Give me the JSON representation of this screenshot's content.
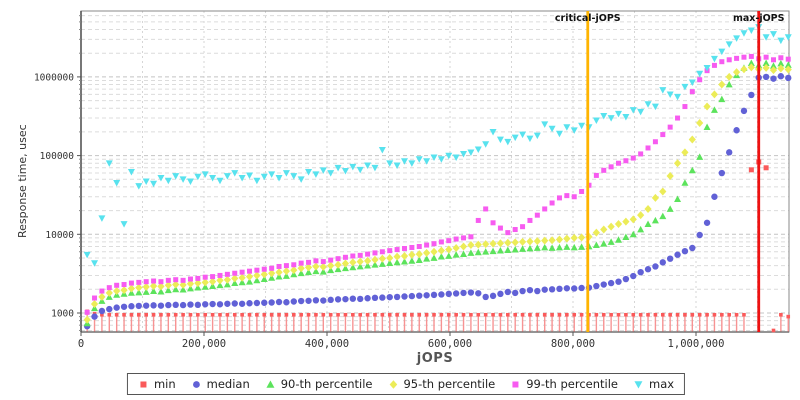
{
  "chart_data": {
    "type": "scatter",
    "title": "",
    "xlabel": "jOPS",
    "ylabel": "Response time, usec",
    "x_axis": {
      "ticks": [
        0,
        200000,
        400000,
        600000,
        800000,
        1000000
      ],
      "tick_labels": [
        "0",
        "200,000",
        "400,000",
        "600,000",
        "800,000",
        "1,000,000"
      ],
      "minor_grid_step": 100000,
      "range": [
        0,
        1151000
      ]
    },
    "y_axis": {
      "scale": "log",
      "ticks": [
        1000,
        10000,
        100000,
        1000000
      ],
      "tick_labels": [
        "1000",
        "10000",
        "100000",
        "1000000"
      ],
      "range": [
        575,
        6900000
      ]
    },
    "grid": true,
    "legend_position": "bottom",
    "annotations": [
      {
        "label": "critical-jOPS",
        "x": 824000,
        "color": "#ffb400"
      },
      {
        "label": "max-jOPS",
        "x": 1102000,
        "color": "#ee1111"
      }
    ],
    "x": [
      10000,
      22000,
      34000,
      46000,
      58000,
      70000,
      82000,
      94000,
      106000,
      118000,
      130000,
      142000,
      154000,
      166000,
      178000,
      190000,
      202000,
      214000,
      226000,
      238000,
      250000,
      262000,
      274000,
      286000,
      298000,
      310000,
      322000,
      334000,
      346000,
      358000,
      370000,
      382000,
      394000,
      406000,
      418000,
      430000,
      442000,
      454000,
      466000,
      478000,
      490000,
      502000,
      514000,
      526000,
      538000,
      550000,
      562000,
      574000,
      586000,
      598000,
      610000,
      622000,
      634000,
      646000,
      658000,
      670000,
      682000,
      694000,
      706000,
      718000,
      730000,
      742000,
      754000,
      766000,
      778000,
      790000,
      802000,
      814000,
      826000,
      838000,
      850000,
      862000,
      874000,
      886000,
      898000,
      910000,
      922000,
      934000,
      946000,
      958000,
      970000,
      982000,
      994000,
      1006000,
      1018000,
      1030000,
      1042000,
      1054000,
      1066000,
      1078000,
      1090000,
      1102000,
      1114000,
      1126000,
      1138000,
      1150000
    ],
    "series": [
      {
        "name": "min",
        "marker": "square",
        "color": "#fa5a5a",
        "stem": true,
        "stem_color": "#f79393",
        "y": [
          1050,
          980,
          950,
          950,
          950,
          950,
          950,
          950,
          950,
          950,
          950,
          950,
          950,
          950,
          950,
          950,
          950,
          950,
          950,
          950,
          950,
          950,
          950,
          950,
          950,
          950,
          950,
          950,
          950,
          950,
          950,
          950,
          950,
          950,
          950,
          950,
          950,
          950,
          950,
          950,
          950,
          950,
          950,
          950,
          950,
          950,
          950,
          950,
          950,
          950,
          950,
          950,
          950,
          950,
          950,
          950,
          950,
          950,
          950,
          950,
          950,
          950,
          950,
          950,
          950,
          950,
          950,
          950,
          950,
          950,
          950,
          950,
          950,
          950,
          950,
          950,
          950,
          950,
          950,
          950,
          950,
          950,
          950,
          950,
          950,
          950,
          950,
          950,
          950,
          950,
          66000,
          83000,
          70000,
          600,
          950,
          900
        ]
      },
      {
        "name": "median",
        "marker": "circle",
        "color": "#6161d6",
        "stem": false,
        "y": [
          680,
          900,
          1060,
          1120,
          1170,
          1200,
          1220,
          1230,
          1240,
          1250,
          1240,
          1260,
          1270,
          1260,
          1280,
          1270,
          1290,
          1300,
          1290,
          1310,
          1320,
          1310,
          1330,
          1340,
          1350,
          1360,
          1380,
          1370,
          1400,
          1420,
          1430,
          1450,
          1440,
          1470,
          1490,
          1500,
          1520,
          1510,
          1540,
          1560,
          1570,
          1590,
          1600,
          1620,
          1640,
          1660,
          1680,
          1700,
          1720,
          1750,
          1770,
          1800,
          1820,
          1780,
          1600,
          1650,
          1750,
          1850,
          1800,
          1900,
          1950,
          1900,
          1980,
          2000,
          2030,
          2060,
          2050,
          2080,
          2100,
          2200,
          2300,
          2400,
          2500,
          2700,
          2950,
          3300,
          3600,
          3900,
          4400,
          4900,
          5500,
          6100,
          6700,
          9800,
          14000,
          30000,
          60000,
          110000,
          210000,
          370000,
          590000,
          980000,
          1000000,
          950000,
          1020000,
          970000
        ]
      },
      {
        "name": "90-th percentile",
        "marker": "triangle-up",
        "color": "#5ce35c",
        "stem": false,
        "y": [
          740,
          1150,
          1420,
          1600,
          1700,
          1750,
          1800,
          1820,
          1850,
          1900,
          1870,
          1950,
          2000,
          1980,
          2050,
          2100,
          2150,
          2200,
          2250,
          2300,
          2400,
          2450,
          2500,
          2600,
          2700,
          2800,
          2900,
          2950,
          3100,
          3200,
          3300,
          3400,
          3350,
          3500,
          3600,
          3700,
          3800,
          3900,
          4000,
          4100,
          4200,
          4300,
          4400,
          4500,
          4600,
          4700,
          4900,
          5000,
          5200,
          5300,
          5500,
          5600,
          5800,
          5900,
          6000,
          6100,
          6200,
          6300,
          6400,
          6500,
          6600,
          6700,
          6800,
          6700,
          6800,
          6900,
          6800,
          6900,
          7000,
          7300,
          7600,
          8000,
          8500,
          9200,
          10000,
          11500,
          13500,
          15000,
          17000,
          21000,
          28000,
          45000,
          65000,
          96000,
          230000,
          380000,
          520000,
          800000,
          1050000,
          1300000,
          1500000,
          1400000,
          1500000,
          1380000,
          1480000,
          1420000
        ]
      },
      {
        "name": "95-th percentile",
        "marker": "diamond",
        "color": "#ecec58",
        "stem": false,
        "y": [
          820,
          1300,
          1600,
          1800,
          1900,
          1950,
          2050,
          2100,
          2150,
          2200,
          2180,
          2250,
          2300,
          2280,
          2350,
          2400,
          2450,
          2500,
          2600,
          2650,
          2750,
          2800,
          2900,
          3000,
          3100,
          3200,
          3300,
          3400,
          3500,
          3700,
          3800,
          3900,
          3850,
          4000,
          4100,
          4250,
          4400,
          4500,
          4600,
          4750,
          4900,
          5000,
          5200,
          5300,
          5500,
          5600,
          5800,
          6000,
          6200,
          6400,
          6700,
          7000,
          7300,
          7400,
          7500,
          7600,
          7700,
          7800,
          7900,
          8000,
          8100,
          8200,
          8300,
          8400,
          8600,
          8800,
          9000,
          9100,
          9300,
          10500,
          11500,
          12500,
          13500,
          14500,
          15500,
          17500,
          21000,
          29000,
          35000,
          55000,
          80000,
          110000,
          160000,
          260000,
          420000,
          600000,
          800000,
          1000000,
          1150000,
          1250000,
          1320000,
          1250000,
          1300000,
          1220000,
          1280000,
          1240000
        ]
      },
      {
        "name": "99-th percentile",
        "marker": "square",
        "color": "#f75bf0",
        "stem": false,
        "y": [
          1020,
          1550,
          1900,
          2100,
          2250,
          2300,
          2400,
          2450,
          2500,
          2550,
          2500,
          2600,
          2650,
          2600,
          2700,
          2750,
          2850,
          2900,
          3000,
          3100,
          3200,
          3300,
          3400,
          3500,
          3600,
          3700,
          3900,
          4000,
          4100,
          4300,
          4400,
          4600,
          4500,
          4700,
          4900,
          5100,
          5300,
          5400,
          5600,
          5800,
          6000,
          6200,
          6400,
          6600,
          6800,
          7000,
          7300,
          7600,
          8000,
          8300,
          8700,
          9000,
          9300,
          15000,
          21000,
          14000,
          12000,
          10500,
          11500,
          12500,
          15000,
          17500,
          21000,
          25000,
          29000,
          31000,
          30000,
          35000,
          42000,
          56000,
          65000,
          72000,
          80000,
          86000,
          93000,
          105000,
          125000,
          150000,
          185000,
          230000,
          300000,
          420000,
          650000,
          920000,
          1200000,
          1400000,
          1560000,
          1650000,
          1720000,
          1780000,
          1820000,
          1700000,
          1780000,
          1650000,
          1750000,
          1680000
        ]
      },
      {
        "name": "max",
        "marker": "triangle-down",
        "color": "#58e2ee",
        "stem": false,
        "y": [
          5500,
          4300,
          16000,
          80000,
          45000,
          13500,
          62000,
          41000,
          47000,
          44000,
          52000,
          48000,
          55000,
          50000,
          47000,
          54000,
          58000,
          52000,
          48000,
          55000,
          60000,
          52000,
          56000,
          48000,
          54000,
          58000,
          52000,
          60000,
          55000,
          50000,
          62000,
          58000,
          65000,
          60000,
          70000,
          64000,
          72000,
          66000,
          75000,
          70000,
          118000,
          80000,
          75000,
          85000,
          80000,
          90000,
          85000,
          95000,
          90000,
          100000,
          95000,
          105000,
          110000,
          120000,
          140000,
          200000,
          160000,
          150000,
          170000,
          185000,
          165000,
          180000,
          250000,
          220000,
          190000,
          230000,
          210000,
          240000,
          230000,
          280000,
          320000,
          300000,
          340000,
          310000,
          380000,
          360000,
          450000,
          420000,
          680000,
          600000,
          560000,
          750000,
          850000,
          1100000,
          1300000,
          1700000,
          2100000,
          2600000,
          3100000,
          3600000,
          3900000,
          4300000,
          3200000,
          3500000,
          2900000,
          3200000
        ]
      }
    ]
  }
}
